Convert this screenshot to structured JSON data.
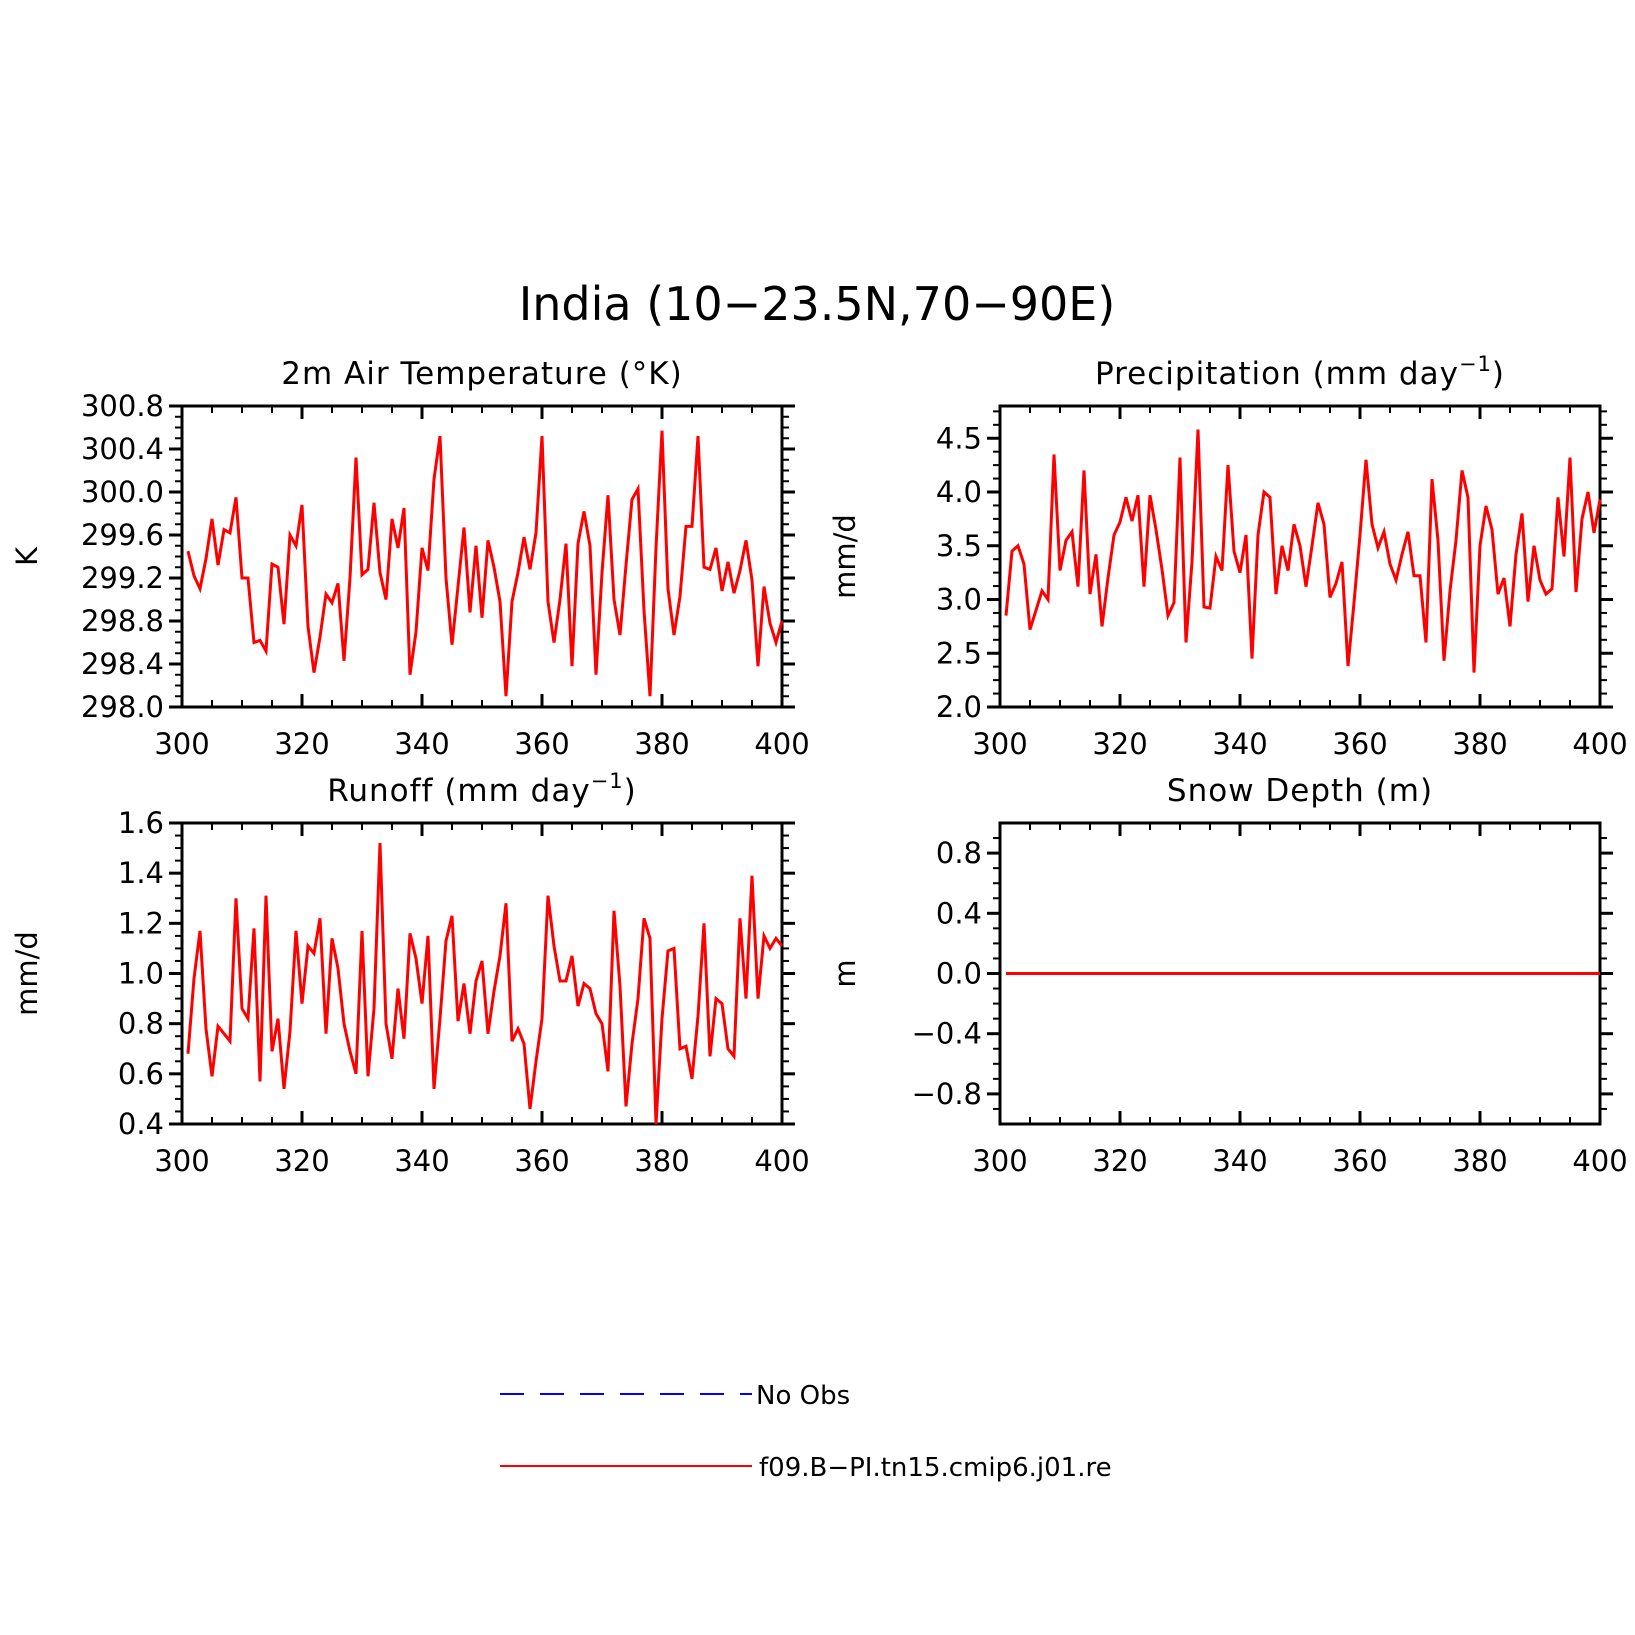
{
  "main_title": "India (10−23.5N,70−90E)",
  "panel_titles": {
    "temp": "2m Air Temperature (°K)",
    "precip": "Precipitation (mm day",
    "precip_sup": "−1",
    "precip_close": ")",
    "runoff": "Runoff (mm day",
    "runoff_sup": "−1",
    "runoff_close": ")",
    "snow": "Snow Depth (m)"
  },
  "legend": [
    {
      "label": "No Obs",
      "color": "#0000ff",
      "style": "dashed"
    },
    {
      "label": "f09.B−PI.tn15.cmip6.j01.re",
      "color": "#ff0000",
      "style": "solid"
    }
  ],
  "colors": {
    "series_line": "#ff0000",
    "obs_line": "#0000ff",
    "axes": "#000000"
  },
  "chart_data": [
    {
      "type": "line",
      "title": "2m Air Temperature (°K)",
      "xlabel": "",
      "ylabel": "K",
      "xlim": [
        300,
        400
      ],
      "ylim": [
        298.0,
        300.8
      ],
      "xticks": [
        300,
        320,
        340,
        360,
        380,
        400
      ],
      "yticks": [
        298.0,
        298.4,
        298.8,
        299.2,
        299.6,
        300.0,
        300.4,
        300.8
      ],
      "ytick_labels": [
        "298.0",
        "298.4",
        "298.8",
        "299.2",
        "299.6",
        "300.0",
        "300.4",
        "300.8"
      ],
      "xtick_labels": [
        "300",
        "320",
        "340",
        "360",
        "380",
        "400"
      ],
      "x_start": 301,
      "series": [
        {
          "name": "f09.B−PI.tn15.cmip6.j01.re",
          "color": "#ff0000",
          "values": [
            299.45,
            299.22,
            299.1,
            299.38,
            299.75,
            299.32,
            299.65,
            299.62,
            299.95,
            299.2,
            299.2,
            298.6,
            298.62,
            298.52,
            299.33,
            299.3,
            298.77,
            299.6,
            299.5,
            299.88,
            298.75,
            298.32,
            298.65,
            299.05,
            298.97,
            299.15,
            298.43,
            299.2,
            300.32,
            299.23,
            299.28,
            299.9,
            299.25,
            299.0,
            299.75,
            299.48,
            299.85,
            298.3,
            298.7,
            299.48,
            299.27,
            300.12,
            300.52,
            299.2,
            298.58,
            299.12,
            299.67,
            298.88,
            299.5,
            298.83,
            299.55,
            299.3,
            298.98,
            298.1,
            298.98,
            299.25,
            299.58,
            299.28,
            299.62,
            300.52,
            298.98,
            298.6,
            299.0,
            299.52,
            298.38,
            299.52,
            299.82,
            299.5,
            298.3,
            299.25,
            299.97,
            299.0,
            298.67,
            299.32,
            299.93,
            300.03,
            298.9,
            298.1,
            299.48,
            300.57,
            299.1,
            298.67,
            299.03,
            299.68,
            299.68,
            300.52,
            299.3,
            299.28,
            299.48,
            299.08,
            299.35,
            299.06,
            299.27,
            299.55,
            299.18,
            298.38,
            299.12,
            298.78,
            298.6,
            298.8
          ]
        }
      ]
    },
    {
      "type": "line",
      "title": "Precipitation (mm day−1)",
      "xlabel": "",
      "ylabel": "mm/d",
      "xlim": [
        300,
        400
      ],
      "ylim": [
        2.0,
        4.8
      ],
      "xticks": [
        300,
        320,
        340,
        360,
        380,
        400
      ],
      "yticks": [
        2.0,
        2.5,
        3.0,
        3.5,
        4.0,
        4.5
      ],
      "ytick_labels": [
        "2.0",
        "2.5",
        "3.0",
        "3.5",
        "4.0",
        "4.5"
      ],
      "xtick_labels": [
        "300",
        "320",
        "340",
        "360",
        "380",
        "400"
      ],
      "x_start": 301,
      "series": [
        {
          "name": "f09.B−PI.tn15.cmip6.j01.re",
          "color": "#ff0000",
          "values": [
            2.85,
            3.45,
            3.5,
            3.33,
            2.72,
            2.9,
            3.08,
            3.0,
            4.35,
            3.27,
            3.55,
            3.63,
            3.12,
            4.2,
            3.05,
            3.42,
            2.75,
            3.2,
            3.6,
            3.72,
            3.95,
            3.73,
            3.97,
            3.12,
            3.97,
            3.65,
            3.28,
            2.85,
            2.97,
            4.32,
            2.6,
            3.35,
            4.58,
            2.93,
            2.92,
            3.4,
            3.27,
            4.25,
            3.45,
            3.25,
            3.6,
            2.45,
            3.6,
            4.0,
            3.95,
            3.05,
            3.5,
            3.27,
            3.7,
            3.5,
            3.12,
            3.5,
            3.9,
            3.7,
            3.02,
            3.15,
            3.35,
            2.38,
            2.97,
            3.6,
            4.3,
            3.7,
            3.48,
            3.63,
            3.33,
            3.18,
            3.42,
            3.63,
            3.22,
            3.22,
            2.6,
            4.12,
            3.55,
            2.43,
            3.08,
            3.55,
            4.2,
            3.95,
            2.32,
            3.5,
            3.87,
            3.65,
            3.05,
            3.2,
            2.75,
            3.42,
            3.8,
            2.98,
            3.5,
            3.18,
            3.05,
            3.1,
            3.95,
            3.4,
            4.32,
            3.07,
            3.75,
            4.0,
            3.62,
            3.93
          ]
        }
      ]
    },
    {
      "type": "line",
      "title": "Runoff (mm day−1)",
      "xlabel": "",
      "ylabel": "mm/d",
      "xlim": [
        300,
        400
      ],
      "ylim": [
        0.4,
        1.6
      ],
      "xticks": [
        300,
        320,
        340,
        360,
        380,
        400
      ],
      "yticks": [
        0.4,
        0.6,
        0.8,
        1.0,
        1.2,
        1.4,
        1.6
      ],
      "ytick_labels": [
        "0.4",
        "0.6",
        "0.8",
        "1.0",
        "1.2",
        "1.4",
        "1.6"
      ],
      "xtick_labels": [
        "300",
        "320",
        "340",
        "360",
        "380",
        "400"
      ],
      "x_start": 301,
      "series": [
        {
          "name": "f09.B−PI.tn15.cmip6.j01.re",
          "color": "#ff0000",
          "values": [
            0.68,
            0.98,
            1.17,
            0.78,
            0.59,
            0.79,
            0.76,
            0.73,
            1.3,
            0.86,
            0.82,
            1.18,
            0.57,
            1.31,
            0.69,
            0.82,
            0.54,
            0.77,
            1.17,
            0.88,
            1.11,
            1.08,
            1.22,
            0.76,
            1.14,
            1.02,
            0.8,
            0.69,
            0.6,
            1.17,
            0.59,
            0.86,
            1.52,
            0.8,
            0.66,
            0.94,
            0.74,
            1.16,
            1.06,
            0.88,
            1.15,
            0.54,
            0.82,
            1.13,
            1.23,
            0.81,
            0.96,
            0.76,
            0.97,
            1.05,
            0.76,
            0.93,
            1.07,
            1.28,
            0.73,
            0.78,
            0.72,
            0.46,
            0.65,
            0.82,
            1.31,
            1.11,
            0.97,
            0.97,
            1.07,
            0.87,
            0.96,
            0.94,
            0.84,
            0.8,
            0.61,
            1.25,
            0.95,
            0.47,
            0.72,
            0.9,
            1.22,
            1.14,
            0.4,
            0.82,
            1.09,
            1.1,
            0.7,
            0.71,
            0.58,
            0.83,
            1.2,
            0.67,
            0.9,
            0.88,
            0.7,
            0.67,
            1.22,
            0.9,
            1.39,
            0.9,
            1.15,
            1.1,
            1.14,
            1.11
          ]
        }
      ]
    },
    {
      "type": "line",
      "title": "Snow Depth (m)",
      "xlabel": "",
      "ylabel": "m",
      "xlim": [
        300,
        400
      ],
      "ylim": [
        -1.0,
        1.0
      ],
      "xticks": [
        300,
        320,
        340,
        360,
        380,
        400
      ],
      "yticks": [
        -0.8,
        -0.4,
        0.0,
        0.4,
        0.8
      ],
      "ytick_labels": [
        "−0.8",
        "−0.4",
        "0.0",
        "0.4",
        "0.8"
      ],
      "xtick_labels": [
        "300",
        "320",
        "340",
        "360",
        "380",
        "400"
      ],
      "x_start": 301,
      "series": [
        {
          "name": "f09.B−PI.tn15.cmip6.j01.re",
          "color": "#ff0000",
          "values": [
            0,
            0,
            0,
            0,
            0,
            0,
            0,
            0,
            0,
            0,
            0,
            0,
            0,
            0,
            0,
            0,
            0,
            0,
            0,
            0,
            0,
            0,
            0,
            0,
            0,
            0,
            0,
            0,
            0,
            0,
            0,
            0,
            0,
            0,
            0,
            0,
            0,
            0,
            0,
            0,
            0,
            0,
            0,
            0,
            0,
            0,
            0,
            0,
            0,
            0,
            0,
            0,
            0,
            0,
            0,
            0,
            0,
            0,
            0,
            0,
            0,
            0,
            0,
            0,
            0,
            0,
            0,
            0,
            0,
            0,
            0,
            0,
            0,
            0,
            0,
            0,
            0,
            0,
            0,
            0,
            0,
            0,
            0,
            0,
            0,
            0,
            0,
            0,
            0,
            0,
            0,
            0,
            0,
            0,
            0,
            0,
            0,
            0,
            0,
            0
          ]
        }
      ]
    }
  ]
}
